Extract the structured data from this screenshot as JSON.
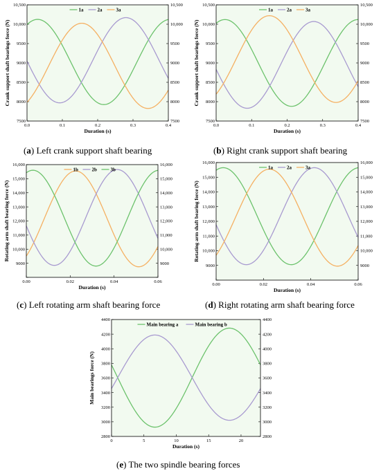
{
  "colors": {
    "green": "#6cc26c",
    "purple": "#a89ad0",
    "orange": "#f5b062",
    "bg": "#f2faf0"
  },
  "chart_data": [
    {
      "type": "line",
      "caption_letter": "a",
      "caption_text": "Left crank support shaft bearing",
      "xlabel": "Duration (s)",
      "ylabel": "Crank support shaft bearings force (N)",
      "xlim": [
        0,
        0.4
      ],
      "ylim": [
        7500,
        10500
      ],
      "xticks": [
        "0.0",
        "0.1",
        "0.2",
        "0.3",
        "0.4"
      ],
      "yticks": [
        "7500",
        "8000",
        "8500",
        "9000",
        "9500",
        "10,000",
        "10,500"
      ],
      "yticks_right": [
        "7500",
        "8000",
        "8500",
        "9000",
        "9500",
        "10,000",
        "10,500"
      ],
      "legend": "top-center",
      "series": [
        {
          "name": "1a",
          "color": "green",
          "center": 9025,
          "amp": 1100,
          "period": 0.375,
          "peak": 0.03
        },
        {
          "name": "2a",
          "color": "purple",
          "center": 9070,
          "amp": 1100,
          "period": 0.375,
          "peak": 0.28
        },
        {
          "name": "3a",
          "color": "orange",
          "center": 8925,
          "amp": 1100,
          "period": 0.375,
          "peak": 0.155
        }
      ]
    },
    {
      "type": "line",
      "caption_letter": "b",
      "caption_text": "Right crank support shaft bearing",
      "xlabel": "Duration (s)",
      "ylabel": "Crank support shaft bearings force (N)",
      "xlim": [
        0,
        0.4
      ],
      "ylim": [
        7500,
        10500
      ],
      "xticks": [
        "0.0",
        "0.1",
        "0.2",
        "0.3",
        "0.4"
      ],
      "yticks": [
        "7500",
        "8000",
        "8500",
        "9000",
        "9500",
        "10,000",
        "10,500"
      ],
      "yticks_right": [
        "7500",
        "8000",
        "8500",
        "9000",
        "9500",
        "10,000",
        "10,500"
      ],
      "legend": "top-center",
      "series": [
        {
          "name": "1a",
          "color": "green",
          "center": 9000,
          "amp": 1120,
          "period": 0.375,
          "peak": 0.025
        },
        {
          "name": "2a",
          "color": "purple",
          "center": 8950,
          "amp": 1120,
          "period": 0.375,
          "peak": 0.275
        },
        {
          "name": "3a",
          "color": "orange",
          "center": 9100,
          "amp": 1120,
          "period": 0.375,
          "peak": 0.15
        }
      ]
    },
    {
      "type": "line",
      "caption_letter": "c",
      "caption_text": "Left rotating arm shaft bearing force",
      "xlabel": "Duration (s)",
      "ylabel": "Rotating arm shaft bearing force (N)",
      "xlim": [
        0,
        0.06
      ],
      "ylim": [
        8000,
        16000
      ],
      "xticks": [
        "0.00",
        "0.02",
        "0.04",
        "0.06"
      ],
      "yticks": [
        "",
        "9000",
        "10,000",
        "11,000",
        "12,000",
        "13,000",
        "14,000",
        "15,000",
        "16,000"
      ],
      "yticks_right": [
        "",
        "9000",
        "10,000",
        "11,000",
        "12,000",
        "13,000",
        "14,000",
        "15,000",
        "16,000"
      ],
      "legend": "top-center",
      "series": [
        {
          "name": "1b",
          "color": "orange",
          "center": 12150,
          "amp": 3400,
          "period": 0.0575,
          "peak": 0.0225
        },
        {
          "name": "2b",
          "color": "purple",
          "center": 12250,
          "amp": 3400,
          "period": 0.0575,
          "peak": 0.0415
        },
        {
          "name": "3b",
          "color": "green",
          "center": 12200,
          "amp": 3400,
          "period": 0.0575,
          "peak": 0.003
        }
      ]
    },
    {
      "type": "line",
      "caption_letter": "d",
      "caption_text": "Right rotating arm shaft bearing force",
      "xlabel": "Duration (s)",
      "ylabel": "Rotating arm shaft bearing force (N)",
      "xlim": [
        0,
        0.06
      ],
      "ylim": [
        8000,
        16000
      ],
      "xticks": [
        "0.00",
        "0.02",
        "0.04",
        "0.06"
      ],
      "yticks": [
        "",
        "9000",
        "10,000",
        "11,000",
        "12,000",
        "13,000",
        "14,000",
        "15,000",
        "16,000"
      ],
      "yticks_right": [
        "",
        "9000",
        "10,000",
        "11,000",
        "12,000",
        "13,000",
        "14,000",
        "15,000",
        "16,000"
      ],
      "legend": "top-center",
      "series": [
        {
          "name": "1a",
          "color": "green",
          "center": 12350,
          "amp": 3300,
          "period": 0.0575,
          "peak": 0.003
        },
        {
          "name": "2a",
          "color": "purple",
          "center": 12350,
          "amp": 3300,
          "period": 0.0575,
          "peak": 0.0415
        },
        {
          "name": "3a",
          "color": "orange",
          "center": 12250,
          "amp": 3300,
          "period": 0.0575,
          "peak": 0.0225
        }
      ]
    },
    {
      "type": "line",
      "caption_letter": "e",
      "caption_text": "The two spindle bearing forces",
      "xlabel": "Duration (s)",
      "ylabel": "Main bearings force (N)",
      "xlim": [
        0,
        23
      ],
      "ylim": [
        2800,
        4500
      ],
      "xticks": [
        "0",
        "5",
        "10",
        "15",
        "20"
      ],
      "yticks": [
        "2800",
        "3000",
        "3200",
        "3400",
        "3600",
        "3800",
        "4000",
        "4200",
        "4400"
      ],
      "yticks_right": [
        "2800",
        "3000",
        "3200",
        "3400",
        "3600",
        "3800",
        "4000",
        "4200",
        "4400"
      ],
      "legend": "top-center",
      "series": [
        {
          "name": "Main bearing a",
          "color": "green",
          "center": 3655,
          "amp": 720,
          "period": 23,
          "peak": 18.2
        },
        {
          "name": "Main bearing b",
          "color": "purple",
          "center": 3655,
          "amp": 620,
          "period": 23,
          "peak": 6.7
        }
      ]
    }
  ]
}
